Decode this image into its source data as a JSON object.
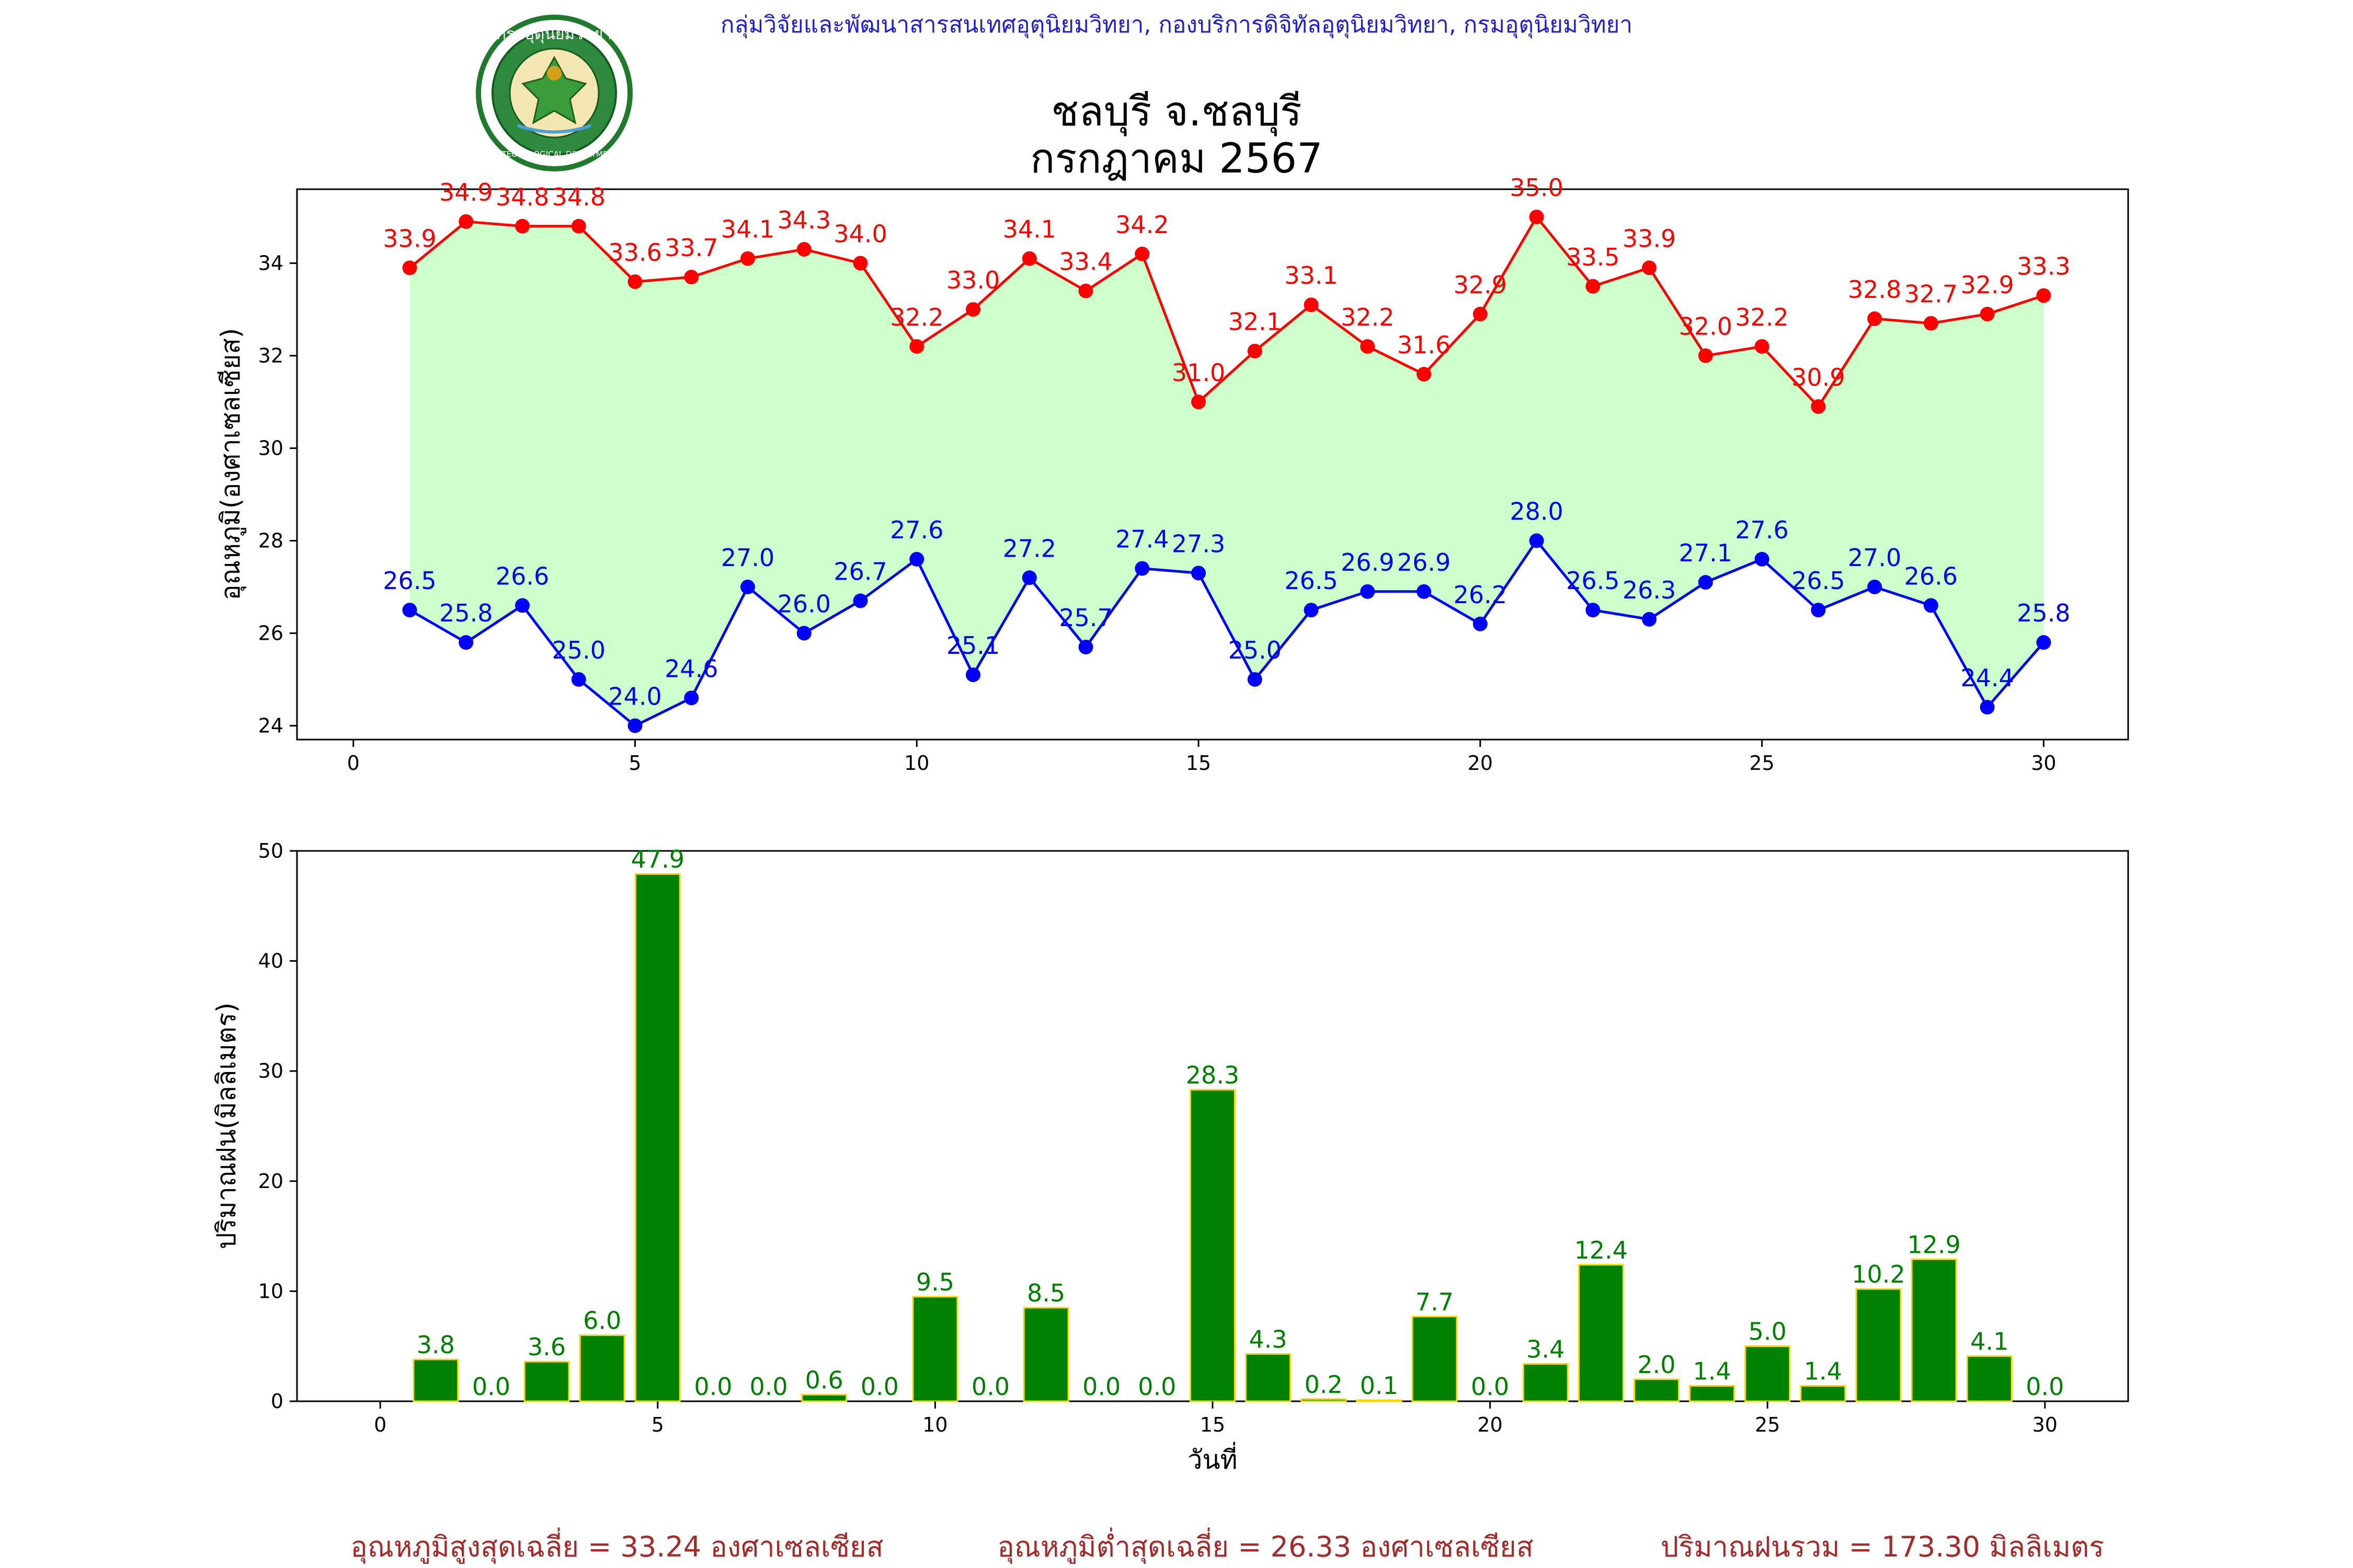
{
  "header": {
    "credit": "กลุ่มวิจัยและพัฒนาสารสนเทศอุตุนิยมวิทยา, กองบริการดิจิทัลอุตุนิยมวิทยา, กรมอุตุนิยมวิทยา",
    "title_line1": "ชลบุรี จ.ชลบุรี",
    "title_line2": "กรกฎาคม 2567",
    "logo_top_text": "กรมอุตุนิยมวิทยา",
    "logo_bottom_text": "METEOROLOGICAL DEPARTMENT"
  },
  "colors": {
    "max": "#ff0000",
    "min": "#0000ff",
    "fill": "#ccffcc",
    "bar": "#008000",
    "bar_edge": "#ffd700",
    "summary": "#a52a2a",
    "credit": "#1f1fd0"
  },
  "chart_data": [
    {
      "type": "line",
      "ylabel": "อุณหภูมิ(องศาเซลเซียส)",
      "xlim": [
        -1,
        31.5
      ],
      "ylim": [
        23.7,
        35.6
      ],
      "xticks": [
        0,
        5,
        10,
        15,
        20,
        25,
        30
      ],
      "yticks": [
        24,
        26,
        28,
        30,
        32,
        34
      ],
      "x": [
        1,
        2,
        3,
        4,
        5,
        6,
        7,
        8,
        9,
        10,
        11,
        12,
        13,
        14,
        15,
        16,
        17,
        18,
        19,
        20,
        21,
        22,
        23,
        24,
        25,
        26,
        27,
        28,
        29,
        30
      ],
      "series": [
        {
          "name": "max",
          "values": [
            33.9,
            34.9,
            34.8,
            34.8,
            33.6,
            33.7,
            34.1,
            34.3,
            34.0,
            32.2,
            33.0,
            34.1,
            33.4,
            34.2,
            31.0,
            32.1,
            33.1,
            32.2,
            31.6,
            32.9,
            35.0,
            33.5,
            33.9,
            32.0,
            32.2,
            30.9,
            32.8,
            32.7,
            32.9,
            33.3
          ],
          "labels": [
            "33.9",
            "34.9",
            "34.8",
            "34.8",
            "33.6",
            "33.7",
            "34.1",
            "34.3",
            "34.0",
            "32.2",
            "33.0",
            "34.1",
            "33.4",
            "34.2",
            "31.0",
            "32.1",
            "33.1",
            "32.2",
            "31.6",
            "32.9",
            "35.0",
            "33.5",
            "33.9",
            "32.0",
            "32.2",
            "30.9",
            "32.8",
            "32.7",
            "32.9",
            "33.3"
          ]
        },
        {
          "name": "min",
          "values": [
            26.5,
            25.8,
            26.6,
            25.0,
            24.0,
            24.6,
            27.0,
            26.0,
            26.7,
            27.6,
            25.1,
            27.2,
            25.7,
            27.4,
            27.3,
            25.0,
            26.5,
            26.9,
            26.9,
            26.2,
            28.0,
            26.5,
            26.3,
            27.1,
            27.6,
            26.5,
            27.0,
            26.6,
            24.4,
            25.8
          ],
          "labels": [
            "26.5",
            "25.8",
            "26.6",
            "25.0",
            "24.0",
            "24.6",
            "27.0",
            "26.0",
            "26.7",
            "27.6",
            "25.1",
            "27.2",
            "25.7",
            "27.4",
            "27.3",
            "25.0",
            "26.5",
            "26.9",
            "26.9",
            "26.2",
            "28.0",
            "26.5",
            "26.3",
            "27.1",
            "27.6",
            "26.5",
            "27.0",
            "26.6",
            "24.4",
            "25.8"
          ]
        }
      ]
    },
    {
      "type": "bar",
      "xlabel": "วันที่",
      "ylabel": "ปริมาณฝน(มิลลิเมตร)",
      "xlim": [
        -1.5,
        31.5
      ],
      "ylim": [
        0,
        50
      ],
      "xticks": [
        0,
        5,
        10,
        15,
        20,
        25,
        30
      ],
      "yticks": [
        0,
        10,
        20,
        30,
        40,
        50
      ],
      "x": [
        1,
        2,
        3,
        4,
        5,
        6,
        7,
        8,
        9,
        10,
        11,
        12,
        13,
        14,
        15,
        16,
        17,
        18,
        19,
        20,
        21,
        22,
        23,
        24,
        25,
        26,
        27,
        28,
        29,
        30
      ],
      "values": [
        3.8,
        0.0,
        3.6,
        6.0,
        47.9,
        0.0,
        0.0,
        0.6,
        0.0,
        9.5,
        0.0,
        8.5,
        0.0,
        0.0,
        28.3,
        4.3,
        0.2,
        0.1,
        7.7,
        0.0,
        3.4,
        12.4,
        2.0,
        1.4,
        5.0,
        1.4,
        10.2,
        12.9,
        4.1,
        0.0
      ],
      "labels": [
        "3.8",
        "0.0",
        "3.6",
        "6.0",
        "47.9",
        "0.0",
        "0.0",
        "0.6",
        "0.0",
        "9.5",
        "0.0",
        "8.5",
        "0.0",
        "0.0",
        "28.3",
        "4.3",
        "0.2",
        "0.1",
        "7.7",
        "0.0",
        "3.4",
        "12.4",
        "2.0",
        "1.4",
        "5.0",
        "1.4",
        "10.2",
        "12.9",
        "4.1",
        "0.0"
      ]
    }
  ],
  "summary": {
    "avg_max": "อุณหภูมิสูงสุดเฉลี่ย = 33.24 องศาเซลเซียส",
    "avg_min": "อุณหภูมิต่ำสุดเฉลี่ย = 26.33 องศาเซลเซียส",
    "total_rain": "ปริมาณฝนรวม = 173.30 มิลลิเมตร"
  }
}
